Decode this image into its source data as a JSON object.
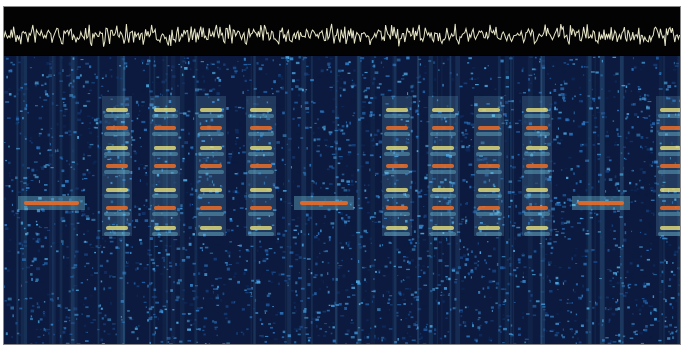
{
  "colors": {
    "waveform_background": "#030303",
    "waveform_trace": "#e8e6c8",
    "waterfall_background": "#0b1a3e",
    "noise_blue": "#1f5fa8",
    "tone_cyan": "#7fd6e8",
    "tone_yellow": "#e8e07a",
    "tone_orange": "#e06a2a"
  }
}
